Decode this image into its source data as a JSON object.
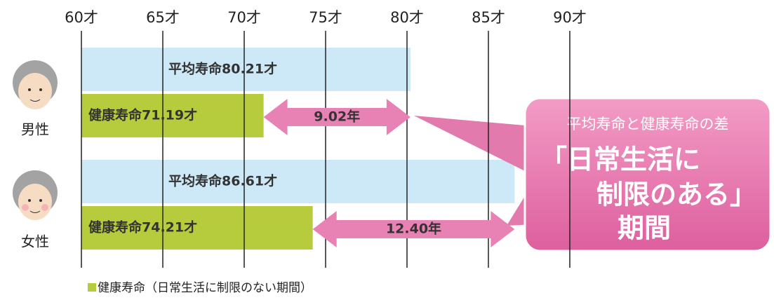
{
  "chart_data": {
    "type": "bar",
    "categories": [
      "男性",
      "女性"
    ],
    "series": [
      {
        "color": "#cde9f8",
        "values": [
          80.21,
          86.61
        ],
        "value_labels": [
          "平均寿命80.21才",
          "平均寿命86.61才"
        ]
      },
      {
        "color": "#b7cc3c",
        "values": [
          71.19,
          74.21
        ],
        "value_labels": [
          "健康寿命71.19才",
          "健康寿命74.21才"
        ]
      }
    ],
    "differences": {
      "color": "#e982b4",
      "values": [
        9.02,
        12.4
      ],
      "value_labels": [
        "9.02年",
        "12.40年"
      ]
    },
    "xlim": [
      60,
      90
    ],
    "xticks": [
      {
        "value": 60,
        "label": "60才"
      },
      {
        "value": 65,
        "label": "65才"
      },
      {
        "value": 70,
        "label": "70才"
      },
      {
        "value": 75,
        "label": "75才"
      },
      {
        "value": 80,
        "label": "80才"
      },
      {
        "value": 85,
        "label": "85才"
      },
      {
        "value": 90,
        "label": "90才"
      }
    ],
    "grid": true,
    "callout": {
      "heading": "平均寿命と健康寿命の差",
      "lines": [
        "「日常生活に",
        "制限のある」",
        "期間"
      ]
    },
    "legend": "健康寿命（日常生活に制限のない期間）"
  }
}
